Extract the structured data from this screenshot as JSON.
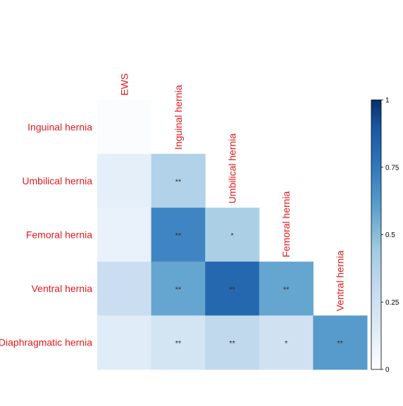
{
  "chart_data": {
    "type": "heatmap",
    "layout": "lower-triangle correlation matrix",
    "column_labels": [
      "EWS",
      "Inguinal hernia",
      "Umbilical hernia",
      "Femoral hernia",
      "Ventral hernia"
    ],
    "row_labels": [
      "Inguinal hernia",
      "Umbilical hernia",
      "Femoral hernia",
      "Ventral hernia",
      "Diaphragmatic hernia"
    ],
    "cells": [
      {
        "row": 0,
        "col": 0,
        "value": 0.02,
        "sig": ""
      },
      {
        "row": 1,
        "col": 0,
        "value": 0.12,
        "sig": ""
      },
      {
        "row": 1,
        "col": 1,
        "value": 0.38,
        "sig": "**"
      },
      {
        "row": 2,
        "col": 0,
        "value": 0.1,
        "sig": ""
      },
      {
        "row": 2,
        "col": 1,
        "value": 0.7,
        "sig": "**"
      },
      {
        "row": 2,
        "col": 2,
        "value": 0.4,
        "sig": "*"
      },
      {
        "row": 3,
        "col": 0,
        "value": 0.27,
        "sig": ""
      },
      {
        "row": 3,
        "col": 1,
        "value": 0.58,
        "sig": "**"
      },
      {
        "row": 3,
        "col": 2,
        "value": 0.82,
        "sig": "**"
      },
      {
        "row": 3,
        "col": 3,
        "value": 0.58,
        "sig": "**"
      },
      {
        "row": 4,
        "col": 0,
        "value": 0.14,
        "sig": ""
      },
      {
        "row": 4,
        "col": 1,
        "value": 0.22,
        "sig": "**"
      },
      {
        "row": 4,
        "col": 2,
        "value": 0.32,
        "sig": "**"
      },
      {
        "row": 4,
        "col": 3,
        "value": 0.24,
        "sig": "*"
      },
      {
        "row": 4,
        "col": 4,
        "value": 0.62,
        "sig": "**"
      }
    ],
    "colorbar": {
      "range": [
        0,
        1
      ],
      "ticks": [
        {
          "value": 0,
          "label": "0"
        },
        {
          "value": 0.25,
          "label": "0.25"
        },
        {
          "value": 0.5,
          "label": "0.5"
        },
        {
          "value": 0.75,
          "label": "0.75"
        },
        {
          "value": 1,
          "label": "1"
        }
      ],
      "color_low": "#ffffff",
      "color_high": "#08306b"
    },
    "label_color": "#e41a1c"
  }
}
